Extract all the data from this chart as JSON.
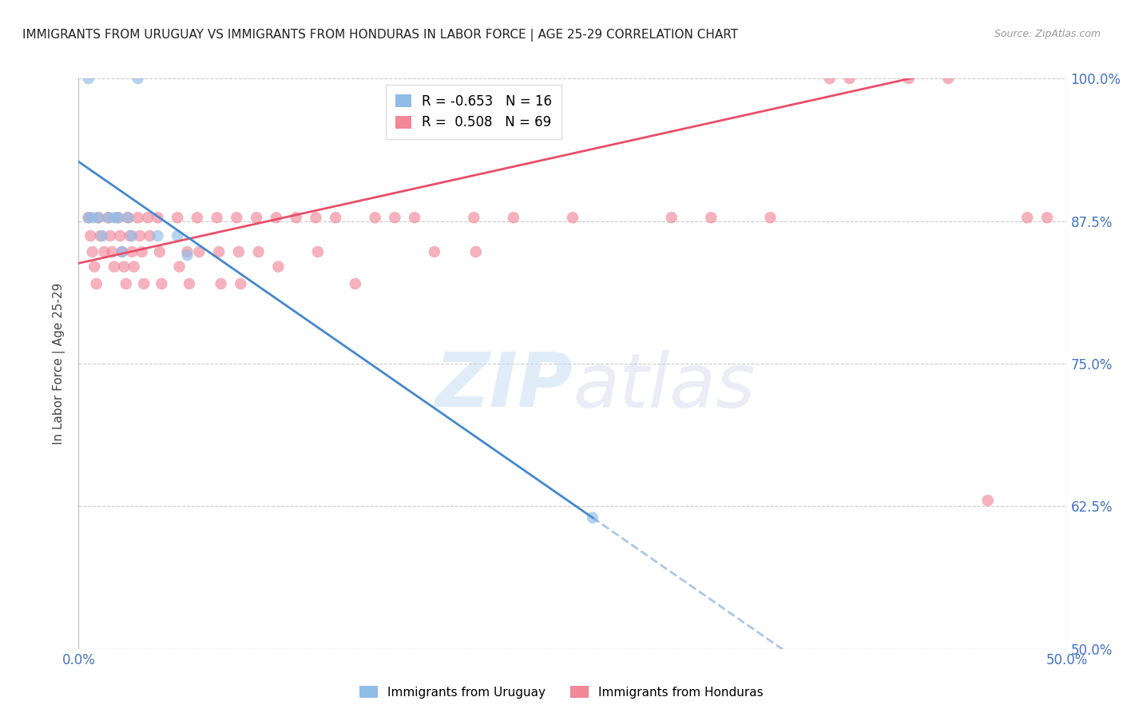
{
  "title": "IMMIGRANTS FROM URUGUAY VS IMMIGRANTS FROM HONDURAS IN LABOR FORCE | AGE 25-29 CORRELATION CHART",
  "source": "Source: ZipAtlas.com",
  "ylabel": "In Labor Force | Age 25-29",
  "legend_uruguay": "Immigrants from Uruguay",
  "legend_honduras": "Immigrants from Honduras",
  "R_uruguay": -0.653,
  "N_uruguay": 16,
  "R_honduras": 0.508,
  "N_honduras": 69,
  "xlim": [
    0.0,
    0.5
  ],
  "ylim": [
    0.5,
    1.0
  ],
  "xticks": [
    0.0,
    0.1,
    0.2,
    0.3,
    0.4,
    0.5
  ],
  "xtick_labels": [
    "0.0%",
    "",
    "",
    "",
    "",
    "50.0%"
  ],
  "yticks": [
    0.5,
    0.625,
    0.75,
    0.875,
    1.0
  ],
  "ytick_labels_right": [
    "50.0%",
    "62.5%",
    "75.0%",
    "87.5%",
    "100.0%"
  ],
  "color_uruguay": "#90bce8",
  "color_honduras": "#f08898",
  "line_color_uruguay": "#4488cc",
  "line_color_honduras": "#e8506a",
  "background_color": "#ffffff",
  "grid_color": "#cccccc",
  "uruguay_x": [
    0.005,
    0.03,
    0.005,
    0.007,
    0.01,
    0.012,
    0.015,
    0.018,
    0.02,
    0.022,
    0.025,
    0.027,
    0.04,
    0.05,
    0.055,
    0.26
  ],
  "uruguay_y": [
    1.0,
    1.0,
    0.878,
    0.878,
    0.878,
    0.862,
    0.878,
    0.878,
    0.878,
    0.848,
    0.878,
    0.862,
    0.862,
    0.862,
    0.845,
    0.615
  ],
  "honduras_x": [
    0.005,
    0.006,
    0.007,
    0.008,
    0.009,
    0.01,
    0.011,
    0.013,
    0.015,
    0.016,
    0.017,
    0.018,
    0.02,
    0.021,
    0.022,
    0.023,
    0.024,
    0.025,
    0.026,
    0.027,
    0.028,
    0.03,
    0.031,
    0.032,
    0.033,
    0.035,
    0.036,
    0.04,
    0.041,
    0.042,
    0.05,
    0.051,
    0.055,
    0.056,
    0.06,
    0.061,
    0.07,
    0.071,
    0.072,
    0.08,
    0.081,
    0.082,
    0.09,
    0.091,
    0.1,
    0.101,
    0.11,
    0.12,
    0.121,
    0.13,
    0.14,
    0.15,
    0.16,
    0.17,
    0.18,
    0.2,
    0.201,
    0.22,
    0.25,
    0.3,
    0.32,
    0.35,
    0.38,
    0.39,
    0.42,
    0.44,
    0.46,
    0.48,
    0.49
  ],
  "honduras_y": [
    0.878,
    0.862,
    0.848,
    0.835,
    0.82,
    0.878,
    0.862,
    0.848,
    0.878,
    0.862,
    0.848,
    0.835,
    0.878,
    0.862,
    0.848,
    0.835,
    0.82,
    0.878,
    0.862,
    0.848,
    0.835,
    0.878,
    0.862,
    0.848,
    0.82,
    0.878,
    0.862,
    0.878,
    0.848,
    0.82,
    0.878,
    0.835,
    0.848,
    0.82,
    0.878,
    0.848,
    0.878,
    0.848,
    0.82,
    0.878,
    0.848,
    0.82,
    0.878,
    0.848,
    0.878,
    0.835,
    0.878,
    0.878,
    0.848,
    0.878,
    0.82,
    0.878,
    0.878,
    0.878,
    0.848,
    0.878,
    0.848,
    0.878,
    0.878,
    0.878,
    0.878,
    0.878,
    1.0,
    1.0,
    1.0,
    1.0,
    0.63,
    0.878,
    0.878
  ]
}
